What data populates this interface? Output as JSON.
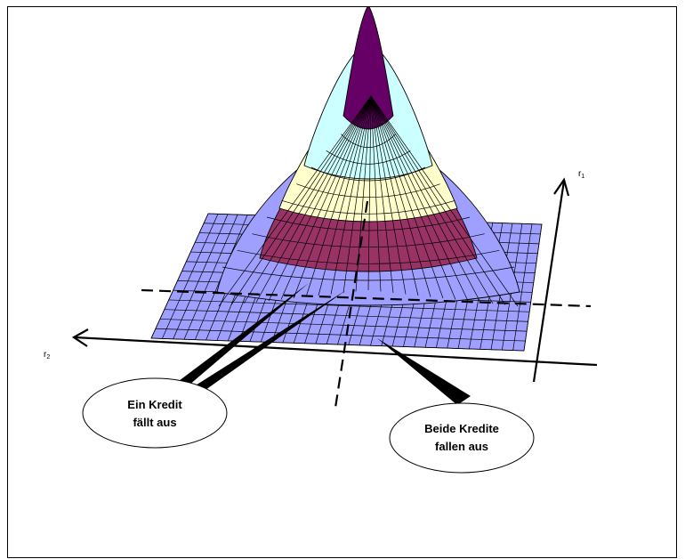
{
  "axes": {
    "r1_base": "r",
    "r1_sub": "1",
    "r2_base": "r",
    "r2_sub": "2"
  },
  "callouts": {
    "one_default": [
      "Ein Kredit",
      "fällt aus"
    ],
    "both_default": [
      "Beide Kredite",
      "fallen aus"
    ]
  },
  "colors": {
    "base": "#9f9fff",
    "band_magenta": "#993366",
    "band_yellow": "#ffffcc",
    "band_cyan": "#ccffff",
    "band_purple": "#660066",
    "grid_line": "#000000"
  }
}
